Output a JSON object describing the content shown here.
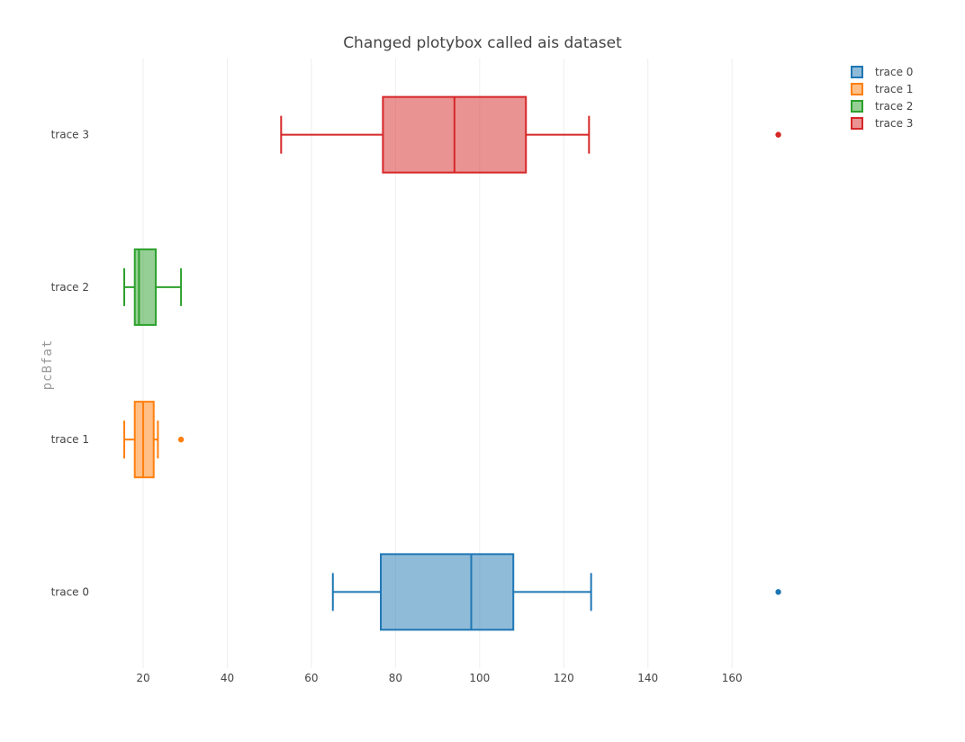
{
  "chart_data": {
    "type": "box",
    "orientation": "horizontal",
    "title": "Changed plotybox called ais dataset",
    "xlabel": "",
    "ylabel": "pcBfat",
    "xlim": [
      11,
      185
    ],
    "xticks": [
      20,
      40,
      60,
      80,
      100,
      120,
      140,
      160
    ],
    "grid": true,
    "legend_position": "top-right",
    "categories": [
      "trace 0",
      "trace 1",
      "trace 2",
      "trace 3"
    ],
    "series": [
      {
        "name": "trace 0",
        "color": "#1f77b4",
        "whisker_low": 65.1,
        "q1": 76.5,
        "median": 98.0,
        "q3": 108.0,
        "whisker_high": 126.5,
        "outliers": [
          171.0
        ]
      },
      {
        "name": "trace 1",
        "color": "#ff7f0e",
        "whisker_low": 15.5,
        "q1": 18.0,
        "median": 20.0,
        "q3": 22.5,
        "whisker_high": 23.5,
        "outliers": [
          29.0
        ]
      },
      {
        "name": "trace 2",
        "color": "#2ca02c",
        "whisker_low": 15.5,
        "q1": 18.0,
        "median": 19.0,
        "q3": 23.0,
        "whisker_high": 29.0,
        "outliers": []
      },
      {
        "name": "trace 3",
        "color": "#d62728",
        "whisker_low": 52.8,
        "q1": 77.0,
        "median": 94.0,
        "q3": 111.0,
        "whisker_high": 126.0,
        "outliers": [
          171.0
        ]
      }
    ]
  }
}
